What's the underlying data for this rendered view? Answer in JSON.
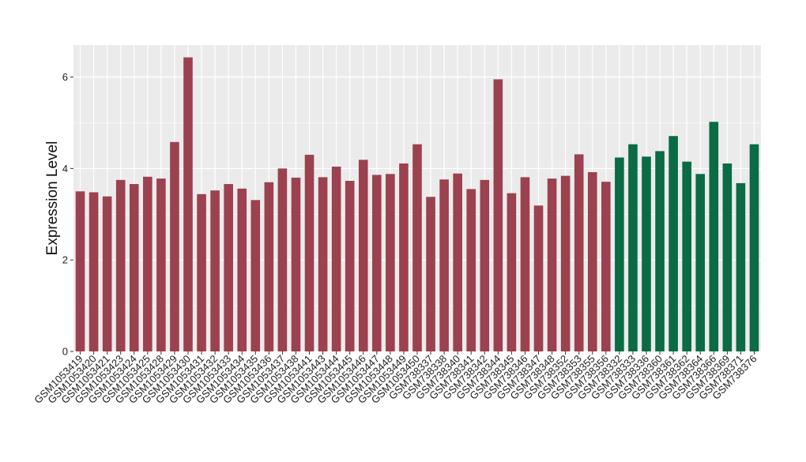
{
  "chart_data": {
    "type": "bar",
    "title": "",
    "xlabel": "",
    "ylabel": "Expression Level",
    "ylim": [
      0,
      6.7
    ],
    "yticks": [
      0,
      2,
      4,
      6
    ],
    "grid": true,
    "legend": "none",
    "colors": {
      "group1": "#9b4150",
      "group2": "#0a6b45",
      "panel": "#ebebeb",
      "gridline": "#ffffff"
    },
    "categories": [
      "GSM1053419",
      "GSM1053420",
      "GSM1053421",
      "GSM1053423",
      "GSM1053424",
      "GSM1053425",
      "GSM1053428",
      "GSM1053429",
      "GSM1053430",
      "GSM1053431",
      "GSM1053432",
      "GSM1053433",
      "GSM1053434",
      "GSM1053435",
      "GSM1053436",
      "GSM1053437",
      "GSM1053438",
      "GSM1053441",
      "GSM1053443",
      "GSM1053444",
      "GSM1053445",
      "GSM1053446",
      "GSM1053447",
      "GSM1053448",
      "GSM1053449",
      "GSM1053450",
      "GSM738337",
      "GSM738338",
      "GSM738340",
      "GSM738341",
      "GSM738342",
      "GSM738344",
      "GSM738345",
      "GSM738346",
      "GSM738347",
      "GSM738348",
      "GSM738352",
      "GSM738353",
      "GSM738355",
      "GSM738356",
      "GSM738332",
      "GSM738333",
      "GSM738336",
      "GSM738360",
      "GSM738361",
      "GSM738362",
      "GSM738364",
      "GSM738366",
      "GSM738369",
      "GSM738371",
      "GSM738376"
    ],
    "values": [
      3.5,
      3.48,
      3.39,
      3.75,
      3.66,
      3.82,
      3.78,
      4.58,
      6.43,
      3.44,
      3.52,
      3.66,
      3.56,
      3.31,
      3.7,
      4.0,
      3.8,
      4.3,
      3.81,
      4.04,
      3.73,
      4.19,
      3.86,
      3.88,
      4.11,
      4.53,
      3.38,
      3.76,
      3.89,
      3.55,
      3.75,
      5.95,
      3.46,
      3.81,
      3.19,
      3.78,
      3.84,
      4.31,
      3.92,
      3.71,
      4.24,
      4.53,
      4.26,
      4.38,
      4.71,
      4.15,
      3.88,
      5.02,
      4.11,
      3.68,
      4.53
    ],
    "groups": [
      1,
      1,
      1,
      1,
      1,
      1,
      1,
      1,
      1,
      1,
      1,
      1,
      1,
      1,
      1,
      1,
      1,
      1,
      1,
      1,
      1,
      1,
      1,
      1,
      1,
      1,
      1,
      1,
      1,
      1,
      1,
      1,
      1,
      1,
      1,
      1,
      1,
      1,
      1,
      1,
      2,
      2,
      2,
      2,
      2,
      2,
      2,
      2,
      2,
      2,
      2
    ]
  }
}
